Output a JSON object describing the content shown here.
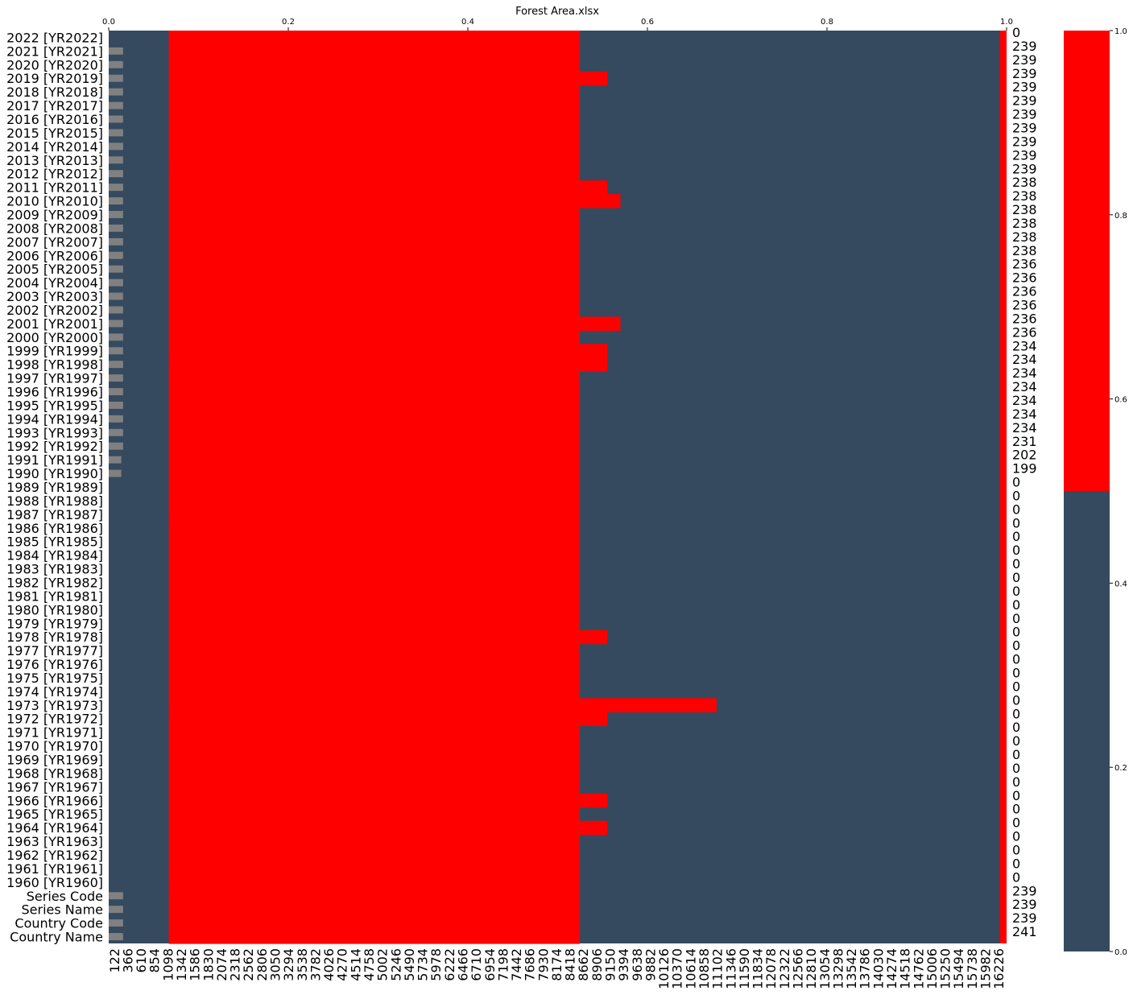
{
  "chart_data": {
    "type": "heatmap",
    "title": "Forest Area.xlsx",
    "top_axis": {
      "ticks": [
        "0.0",
        "0.2",
        "0.4",
        "0.6",
        "0.8",
        "1.0"
      ],
      "range": [
        0,
        1
      ]
    },
    "row_labels": [
      "2022 [YR2022]",
      "2021 [YR2021]",
      "2020 [YR2020]",
      "2019 [YR2019]",
      "2018 [YR2018]",
      "2017 [YR2017]",
      "2016 [YR2016]",
      "2015 [YR2015]",
      "2014 [YR2014]",
      "2013 [YR2013]",
      "2012 [YR2012]",
      "2011 [YR2011]",
      "2010 [YR2010]",
      "2009 [YR2009]",
      "2008 [YR2008]",
      "2007 [YR2007]",
      "2006 [YR2006]",
      "2005 [YR2005]",
      "2004 [YR2004]",
      "2003 [YR2003]",
      "2002 [YR2002]",
      "2001 [YR2001]",
      "2000 [YR2000]",
      "1999 [YR1999]",
      "1998 [YR1998]",
      "1997 [YR1997]",
      "1996 [YR1996]",
      "1995 [YR1995]",
      "1994 [YR1994]",
      "1993 [YR1993]",
      "1992 [YR1992]",
      "1991 [YR1991]",
      "1990 [YR1990]",
      "1989 [YR1989]",
      "1988 [YR1988]",
      "1987 [YR1987]",
      "1986 [YR1986]",
      "1985 [YR1985]",
      "1984 [YR1984]",
      "1983 [YR1983]",
      "1982 [YR1982]",
      "1981 [YR1981]",
      "1980 [YR1980]",
      "1979 [YR1979]",
      "1978 [YR1978]",
      "1977 [YR1977]",
      "1976 [YR1976]",
      "1975 [YR1975]",
      "1974 [YR1974]",
      "1973 [YR1973]",
      "1972 [YR1972]",
      "1971 [YR1971]",
      "1970 [YR1970]",
      "1969 [YR1969]",
      "1968 [YR1968]",
      "1967 [YR1967]",
      "1966 [YR1966]",
      "1965 [YR1965]",
      "1964 [YR1964]",
      "1963 [YR1963]",
      "1962 [YR1962]",
      "1961 [YR1961]",
      "1960 [YR1960]",
      "Series Code",
      "Series Name",
      "Country Code",
      "Country Name"
    ],
    "right_labels": [
      "0",
      "239",
      "239",
      "239",
      "239",
      "239",
      "239",
      "239",
      "239",
      "239",
      "239",
      "238",
      "238",
      "238",
      "238",
      "238",
      "238",
      "236",
      "236",
      "236",
      "236",
      "236",
      "236",
      "234",
      "234",
      "234",
      "234",
      "234",
      "234",
      "234",
      "231",
      "202",
      "199",
      "0",
      "0",
      "0",
      "0",
      "0",
      "0",
      "0",
      "0",
      "0",
      "0",
      "0",
      "0",
      "0",
      "0",
      "0",
      "0",
      "0",
      "0",
      "0",
      "0",
      "0",
      "0",
      "0",
      "0",
      "0",
      "0",
      "0",
      "0",
      "0",
      "0",
      "239",
      "239",
      "239",
      "241"
    ],
    "x_tick_labels": [
      "122",
      "366",
      "610",
      "854",
      "1098",
      "1342",
      "1586",
      "1830",
      "2074",
      "2318",
      "2562",
      "2806",
      "3050",
      "3294",
      "3538",
      "3782",
      "4026",
      "4270",
      "4514",
      "4758",
      "5002",
      "5246",
      "5490",
      "5734",
      "5978",
      "6222",
      "6466",
      "6710",
      "6954",
      "7198",
      "7442",
      "7686",
      "7930",
      "8174",
      "8418",
      "8662",
      "8906",
      "9150",
      "9394",
      "9638",
      "9882",
      "10126",
      "10370",
      "10614",
      "10858",
      "11102",
      "11346",
      "11590",
      "11834",
      "12078",
      "12322",
      "12566",
      "12810",
      "13054",
      "13298",
      "13542",
      "13786",
      "14030",
      "14274",
      "14518",
      "14762",
      "15006",
      "15250",
      "15494",
      "15738",
      "15982",
      "16226"
    ],
    "x_range": [
      0,
      16349
    ],
    "red_start": 1094,
    "red_end": 8578,
    "red_extent_by_row": [
      8578,
      8578,
      8578,
      9078,
      8578,
      8578,
      8578,
      8578,
      8578,
      8578,
      8578,
      9078,
      9318,
      8578,
      8578,
      8578,
      8578,
      8578,
      8578,
      8578,
      8578,
      9318,
      8578,
      9078,
      9078,
      8578,
      8578,
      8578,
      8578,
      8578,
      8578,
      8578,
      8578,
      8578,
      8578,
      8578,
      8578,
      8578,
      8578,
      8578,
      8578,
      8578,
      8578,
      8578,
      9078,
      8578,
      8578,
      8578,
      8578,
      11068,
      9078,
      8578,
      8578,
      8578,
      8578,
      8578,
      9078,
      8578,
      9078,
      8578,
      8578,
      8578,
      8578,
      8578,
      8578,
      8578,
      8578
    ],
    "grey_bar_fraction_by_row": [
      0,
      0.016,
      0.016,
      0.016,
      0.016,
      0.016,
      0.016,
      0.016,
      0.016,
      0.016,
      0.016,
      0.016,
      0.016,
      0.016,
      0.016,
      0.016,
      0.016,
      0.016,
      0.016,
      0.016,
      0.016,
      0.016,
      0.016,
      0.016,
      0.016,
      0.016,
      0.016,
      0.016,
      0.016,
      0.016,
      0.016,
      0.014,
      0.014,
      0,
      0,
      0,
      0,
      0,
      0,
      0,
      0,
      0,
      0,
      0,
      0,
      0,
      0,
      0,
      0,
      0,
      0,
      0,
      0,
      0,
      0,
      0,
      0,
      0,
      0,
      0,
      0,
      0,
      0,
      0.016,
      0.016,
      0.016,
      0.016
    ],
    "right_edge_red_column": true,
    "colorbar": {
      "ticks": [
        "0.0",
        "0.2",
        "0.4",
        "0.6",
        "0.8",
        "1.0"
      ],
      "range": [
        0,
        1
      ],
      "threshold": 0.5
    },
    "colors": {
      "missing": "#ff0000",
      "present": "#354a5f",
      "bar": "#808080"
    }
  }
}
